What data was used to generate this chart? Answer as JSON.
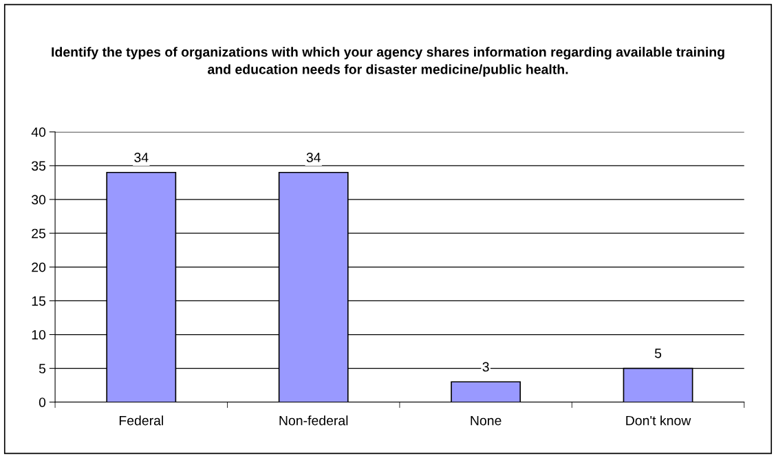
{
  "chart_data": {
    "type": "bar",
    "title": "Identify the types of organizations with which your agency shares information regarding available training and education needs for disaster medicine/public health.",
    "categories": [
      "Federal",
      "Non-federal",
      "None",
      "Don't know"
    ],
    "values": [
      34,
      34,
      3,
      5
    ],
    "color": "#9999ff",
    "ylim": [
      0,
      40
    ],
    "yticks": [
      0,
      5,
      10,
      15,
      20,
      25,
      30,
      35,
      40
    ],
    "grid": "y",
    "data_labels": true
  }
}
